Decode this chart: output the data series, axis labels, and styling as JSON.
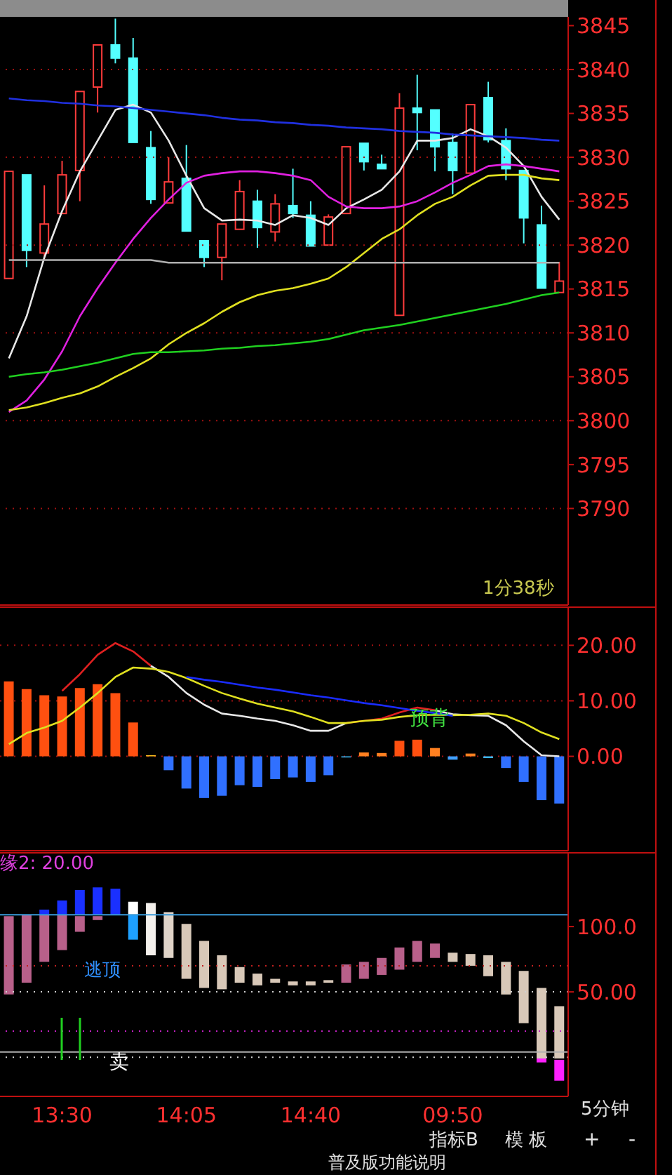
{
  "chart_data": [
    {
      "type": "candlestick",
      "categories": [
        null,
        null,
        null,
        null,
        null,
        null,
        null,
        null,
        null,
        null,
        null,
        null,
        null,
        null,
        null,
        null,
        null,
        null,
        null,
        null,
        null,
        null,
        null,
        null,
        null,
        null,
        null,
        null,
        null,
        null,
        null,
        null
      ],
      "ohlc": [
        [
          3816.2,
          3828.4,
          3816.2,
          3828.4
        ],
        [
          3828.0,
          3828.0,
          3817.5,
          3819.4
        ],
        [
          3819.1,
          3826.8,
          3818.3,
          3822.4
        ],
        [
          3823.6,
          3829.6,
          3823.6,
          3828.0
        ],
        [
          3828.5,
          3837.5,
          3825.0,
          3837.5
        ],
        [
          3838.0,
          3842.8,
          3835.1,
          3842.8
        ],
        [
          3842.8,
          3845.8,
          3840.7,
          3841.3
        ],
        [
          3841.3,
          3843.6,
          3831.7,
          3831.7
        ],
        [
          3831.1,
          3833.0,
          3824.7,
          3825.2
        ],
        [
          3824.8,
          3830.0,
          3824.8,
          3827.2
        ],
        [
          3827.6,
          3831.4,
          3821.6,
          3821.6
        ],
        [
          3820.5,
          3820.5,
          3817.5,
          3818.6
        ],
        [
          3818.6,
          3822.4,
          3816.0,
          3822.4
        ],
        [
          3821.8,
          3827.4,
          3821.8,
          3826.1
        ],
        [
          3825.0,
          3826.3,
          3819.7,
          3822.0
        ],
        [
          3821.5,
          3825.8,
          3820.4,
          3824.7
        ],
        [
          3824.5,
          3828.7,
          3823.1,
          3823.6
        ],
        [
          3823.4,
          3825.0,
          3819.9,
          3819.9
        ],
        [
          3820.0,
          3823.5,
          3820.0,
          3823.2
        ],
        [
          3823.6,
          3831.2,
          3823.6,
          3831.2
        ],
        [
          3831.6,
          3831.6,
          3828.5,
          3829.5
        ],
        [
          3829.2,
          3830.3,
          3828.7,
          3828.7
        ],
        [
          3812.0,
          3837.3,
          3812.0,
          3835.6
        ],
        [
          3835.6,
          3839.4,
          3830.8,
          3835.1
        ],
        [
          3835.4,
          3835.4,
          3828.4,
          3831.2
        ],
        [
          3831.7,
          3832.7,
          3825.8,
          3828.5
        ],
        [
          3828.2,
          3836.0,
          3828.2,
          3836.0
        ],
        [
          3836.8,
          3838.6,
          3831.7,
          3832.0
        ],
        [
          3831.9,
          3833.3,
          3827.4,
          3828.7
        ],
        [
          3828.5,
          3828.5,
          3820.2,
          3823.1
        ],
        [
          3822.3,
          3824.5,
          3815.1,
          3815.1
        ],
        [
          3814.6,
          3818.1,
          3814.6,
          3815.9
        ]
      ],
      "colors": [
        "#ff3c3c",
        "#54ffff",
        "#ff3c3c",
        "#ff3c3c",
        "#ff3c3c",
        "#ff3c3c",
        "#54ffff",
        "#54ffff",
        "#54ffff",
        "#ff3c3c",
        "#54ffff",
        "#54ffff",
        "#ff3c3c",
        "#ff3c3c",
        "#54ffff",
        "#ff3c3c",
        "#54ffff",
        "#54ffff",
        "#ff3c3c",
        "#ff3c3c",
        "#54ffff",
        "#54ffff",
        "#ff3c3c",
        "#54ffff",
        "#54ffff",
        "#54ffff",
        "#ff3c3c",
        "#54ffff",
        "#54ffff",
        "#54ffff",
        "#54ffff",
        "#ff3c3c"
      ],
      "series": [
        {
          "type": "line",
          "color": "#e8e8e8",
          "values": [
            3807.1,
            3811.9,
            3818.6,
            3823.9,
            3828.4,
            3831.9,
            3835.4,
            3836.0,
            3835.1,
            3831.9,
            3827.9,
            3824.2,
            3822.8,
            3822.9,
            3822.8,
            3822.3,
            3823.4,
            3823.1,
            3822.3,
            3824.2,
            3825.2,
            3826.3,
            3828.4,
            3831.9,
            3831.9,
            3832.2,
            3833.2,
            3832.4,
            3831.1,
            3829.0,
            3825.5,
            3822.9
          ]
        },
        {
          "type": "line",
          "color": "#e020e0",
          "values": [
            3801.0,
            3802.3,
            3804.7,
            3807.9,
            3811.9,
            3815.1,
            3818.0,
            3820.7,
            3823.1,
            3825.2,
            3827.1,
            3827.9,
            3828.2,
            3828.4,
            3828.4,
            3828.2,
            3827.9,
            3827.4,
            3825.5,
            3824.4,
            3824.2,
            3824.2,
            3824.4,
            3825.0,
            3826.0,
            3827.1,
            3828.0,
            3829.0,
            3829.2,
            3829.0,
            3828.7,
            3828.4
          ]
        },
        {
          "type": "line",
          "color": "#e0e020",
          "values": [
            3801.2,
            3801.5,
            3802.0,
            3802.6,
            3803.1,
            3803.9,
            3805.0,
            3806.0,
            3807.1,
            3808.7,
            3810.0,
            3811.1,
            3812.4,
            3813.5,
            3814.3,
            3814.8,
            3815.1,
            3815.6,
            3816.2,
            3817.5,
            3819.1,
            3820.7,
            3821.8,
            3823.4,
            3824.7,
            3825.5,
            3826.8,
            3827.9,
            3828.0,
            3828.0,
            3827.6,
            3827.4
          ]
        },
        {
          "type": "line",
          "color": "#20d020",
          "values": [
            3805.0,
            3805.3,
            3805.5,
            3805.8,
            3806.2,
            3806.6,
            3807.1,
            3807.6,
            3807.8,
            3807.8,
            3807.9,
            3808.0,
            3808.2,
            3808.3,
            3808.5,
            3808.6,
            3808.8,
            3809.0,
            3809.3,
            3809.8,
            3810.3,
            3810.6,
            3810.9,
            3811.3,
            3811.7,
            3812.1,
            3812.5,
            3812.9,
            3813.3,
            3813.8,
            3814.3,
            3814.6
          ]
        },
        {
          "type": "line",
          "color": "#2030e0",
          "values": [
            3836.7,
            3836.5,
            3836.4,
            3836.2,
            3836.1,
            3835.9,
            3835.8,
            3835.6,
            3835.4,
            3835.2,
            3835.0,
            3834.8,
            3834.5,
            3834.3,
            3834.2,
            3834.0,
            3833.9,
            3833.7,
            3833.6,
            3833.4,
            3833.3,
            3833.2,
            3833.0,
            3832.9,
            3832.8,
            3832.6,
            3832.5,
            3832.4,
            3832.3,
            3832.2,
            3832.0,
            3831.9
          ]
        },
        {
          "type": "line",
          "color": "#b0b0b0",
          "values": [
            3818.3,
            3818.3,
            3818.3,
            3818.3,
            3818.3,
            3818.3,
            3818.3,
            3818.3,
            3818.3,
            3818.0,
            3818.0,
            3818.0,
            3818.0,
            3818.0,
            3818.0,
            3818.0,
            3818.0,
            3818.0,
            3818.0,
            3818.0,
            3818.0,
            3818.0,
            3818.0,
            3818.0,
            3818.0,
            3818.0,
            3818.0,
            3818.0,
            3818.0,
            3818.0,
            3818.0,
            3818.0
          ]
        }
      ],
      "ylim": [
        3779,
        3846
      ],
      "yticks": [
        3790,
        3795,
        3800,
        3805,
        3810,
        3815,
        3820,
        3825,
        3830,
        3835,
        3840,
        3845
      ],
      "ref_lines": [
        {
          "axis": "y",
          "value": 3840,
          "color": "#a01010",
          "line_style": "dotted"
        },
        {
          "axis": "y",
          "value": 3830,
          "color": "#a01010",
          "line_style": "dotted"
        },
        {
          "axis": "y",
          "value": 3820,
          "color": "#a01010",
          "line_style": "dotted"
        },
        {
          "axis": "y",
          "value": 3810,
          "color": "#a01010",
          "line_style": "dotted"
        },
        {
          "axis": "y",
          "value": 3800,
          "color": "#a01010",
          "line_style": "dotted"
        },
        {
          "axis": "y",
          "value": 3790,
          "color": "#a01010",
          "line_style": "dotted"
        }
      ],
      "tick_labels": "y",
      "annotations": [
        "1分38秒"
      ]
    },
    {
      "type": "bar",
      "categories": [
        null,
        null,
        null,
        null,
        null,
        null,
        null,
        null,
        null,
        null,
        null,
        null,
        null,
        null,
        null,
        null,
        null,
        null,
        null,
        null,
        null,
        null,
        null,
        null,
        null,
        null,
        null,
        null,
        null,
        null,
        null,
        null
      ],
      "series": [
        {
          "type": "bar",
          "values": [
            13.5,
            12.1,
            11.0,
            10.8,
            12.3,
            13.0,
            11.4,
            6.1,
            0.2,
            -2.5,
            -5.8,
            -7.5,
            -7.1,
            -5.2,
            -5.5,
            -4.1,
            -3.8,
            -4.6,
            -3.4,
            -0.2,
            0.7,
            0.6,
            2.8,
            3.0,
            1.5,
            -0.6,
            0.5,
            -0.3,
            -2.1,
            -4.6,
            -7.9,
            -8.5
          ],
          "colors": [
            "#ff5010",
            "#ff5010",
            "#ff5010",
            "#ff5010",
            "#ff5010",
            "#ff5010",
            "#ff5010",
            "#ff5010",
            "#ffc020",
            "#3070ff",
            "#3070ff",
            "#3070ff",
            "#3070ff",
            "#3070ff",
            "#3070ff",
            "#3070ff",
            "#3070ff",
            "#3070ff",
            "#3070ff",
            "#40c0ff",
            "#ff8020",
            "#ff8020",
            "#ff5010",
            "#ff5010",
            "#ff8020",
            "#40a0ff",
            "#ff8020",
            "#40c0ff",
            "#3070ff",
            "#3070ff",
            "#3070ff",
            "#3070ff"
          ]
        },
        {
          "type": "line",
          "color": "#e02020",
          "values": [
            null,
            null,
            null,
            11.8,
            14.8,
            18.3,
            20.4,
            18.9,
            16.3,
            null,
            null,
            null,
            null,
            null,
            null,
            null,
            null,
            null,
            null,
            6.0,
            6.4,
            6.8,
            7.9,
            8.8,
            8.3,
            null,
            null,
            null,
            null,
            null,
            null,
            null
          ]
        },
        {
          "type": "line",
          "color": "#e8e8e8",
          "values": [
            null,
            null,
            null,
            null,
            null,
            null,
            null,
            null,
            16.3,
            14.3,
            11.4,
            9.3,
            7.7,
            7.3,
            6.8,
            6.4,
            5.6,
            4.6,
            4.6,
            6.0,
            null,
            null,
            null,
            null,
            8.3,
            7.6,
            7.4,
            7.3,
            5.6,
            2.7,
            0.2,
            0.0
          ]
        },
        {
          "type": "line",
          "color": "#e0e020",
          "values": [
            2.2,
            4.2,
            5.2,
            6.4,
            8.8,
            11.4,
            14.3,
            16.0,
            15.8,
            15.2,
            14.1,
            12.7,
            11.4,
            10.4,
            9.5,
            8.8,
            8.1,
            7.1,
            6.0,
            6.0,
            6.4,
            6.6,
            7.1,
            7.4,
            7.5,
            7.4,
            7.5,
            7.7,
            7.3,
            6.0,
            4.3,
            3.1
          ]
        },
        {
          "type": "line",
          "color": "#1a2cff",
          "values": [
            null,
            null,
            null,
            null,
            null,
            null,
            null,
            null,
            null,
            null,
            14.3,
            13.8,
            13.4,
            12.9,
            12.4,
            12.0,
            11.5,
            11.0,
            10.6,
            10.1,
            9.6,
            9.2,
            8.7,
            8.2,
            7.8,
            7.3,
            null,
            null,
            null,
            null,
            null,
            null
          ]
        }
      ],
      "ylim": [
        -17,
        27
      ],
      "yticks": [
        {
          "value": 0,
          "label": "0.00"
        },
        {
          "value": 10,
          "label": "10.00"
        },
        {
          "value": 20,
          "label": "20.00"
        }
      ],
      "grid": "y",
      "tick_labels": "y",
      "annotations": [
        "预背"
      ]
    },
    {
      "type": "bar",
      "categories": [
        null,
        null,
        null,
        "13:30",
        null,
        null,
        null,
        null,
        null,
        null,
        "14:05",
        null,
        null,
        null,
        null,
        null,
        null,
        "14:40",
        null,
        null,
        null,
        null,
        null,
        null,
        null,
        "09:50",
        null,
        null,
        null,
        null,
        null,
        null
      ],
      "series": [
        {
          "type": "bar",
          "base": [
            48,
            57,
            73,
            82,
            96,
            105,
            null,
            109,
            78,
            76,
            60,
            53,
            52,
            57,
            55,
            57,
            55,
            55,
            57,
            57,
            60,
            63,
            67,
            73,
            76,
            73,
            70,
            62,
            48,
            26,
            -1,
            -1
          ],
          "values": [
            60,
            52,
            36,
            27,
            12,
            3,
            null,
            10,
            40,
            35,
            42,
            36,
            26,
            12,
            9,
            3,
            3,
            3,
            2,
            14,
            13,
            13,
            17,
            16,
            11,
            7,
            9,
            16,
            25,
            40,
            54,
            40
          ],
          "colors": [
            "#b8608a",
            "#b8608a",
            "#b8608a",
            "#b8608a",
            "#b8608a",
            "#b8608a",
            "#b8608a",
            "#ffffff",
            "#f4f0ec",
            "#e0d4c8",
            "#d8c8b8",
            "#d8c8b8",
            "#d8c8b8",
            "#d8c8b8",
            "#d8c8b8",
            "#d8c8b8",
            "#d8c8b8",
            "#d8c8b8",
            "#d8c8b8",
            "#b8608a",
            "#b8608a",
            "#b8608a",
            "#b8608a",
            "#b8608a",
            "#b8608a",
            "#d8c8b8",
            "#d8c8b8",
            "#d8c8b8",
            "#d8c8b8",
            "#d8c8b8",
            "#d8c8b8",
            "#d8c8b8"
          ]
        },
        {
          "type": "bar",
          "color": "#1a30ff",
          "base": [
            null,
            null,
            109,
            109,
            109,
            109,
            109,
            null,
            null,
            null,
            null,
            null,
            null,
            null,
            null,
            null,
            null,
            null,
            null,
            null,
            null,
            null,
            null,
            null,
            null,
            null,
            null,
            null,
            null,
            null,
            null,
            null
          ],
          "values": [
            null,
            null,
            4,
            11,
            19,
            21,
            20,
            null,
            null,
            null,
            null,
            null,
            null,
            null,
            null,
            null,
            null,
            null,
            null,
            null,
            null,
            null,
            null,
            null,
            null,
            null,
            null,
            null,
            null,
            null,
            null,
            null
          ]
        },
        {
          "type": "bar",
          "color": "#1ea0ff",
          "base": [
            null,
            null,
            null,
            null,
            null,
            null,
            null,
            90,
            null,
            null,
            null,
            null,
            null,
            null,
            null,
            null,
            null,
            null,
            null,
            null,
            null,
            null,
            null,
            null,
            null,
            null,
            null,
            null,
            null,
            null,
            null,
            null
          ],
          "values": [
            null,
            null,
            null,
            null,
            null,
            null,
            null,
            19,
            null,
            null,
            null,
            null,
            null,
            null,
            null,
            null,
            null,
            null,
            null,
            null,
            null,
            null,
            null,
            null,
            null,
            null,
            null,
            null,
            null,
            null,
            null,
            null
          ]
        },
        {
          "type": "bar",
          "color": "#ff20ff",
          "base": [
            null,
            null,
            null,
            null,
            null,
            null,
            null,
            null,
            null,
            null,
            null,
            null,
            null,
            null,
            null,
            null,
            null,
            null,
            null,
            null,
            null,
            null,
            null,
            null,
            null,
            null,
            null,
            null,
            null,
            null,
            -4,
            -18
          ],
          "values": [
            null,
            null,
            null,
            null,
            null,
            null,
            null,
            null,
            null,
            null,
            null,
            null,
            null,
            null,
            null,
            null,
            null,
            null,
            null,
            null,
            null,
            null,
            null,
            null,
            null,
            null,
            null,
            null,
            null,
            null,
            3,
            16
          ]
        }
      ],
      "ylim": [
        -30,
        157
      ],
      "yticks": [
        {
          "value": 50,
          "label": "50.00"
        },
        {
          "value": 100,
          "label": "100.0"
        }
      ],
      "ref_lines": [
        {
          "axis": "y",
          "value": 109,
          "color": "#3a9ad9",
          "line_style": "solid"
        },
        {
          "axis": "y",
          "value": 70,
          "color": "#c02020",
          "line_style": "dotted"
        },
        {
          "axis": "y",
          "value": 50,
          "color": "#d0d0d0",
          "line_style": "dotted"
        },
        {
          "axis": "y",
          "value": 20,
          "color": "#c020c0",
          "line_style": "dotted"
        },
        {
          "axis": "y",
          "value": 4,
          "color": "#b0b0b0",
          "line_style": "solid"
        },
        {
          "axis": "y",
          "value": 0,
          "color": "#d0d0d0",
          "line_style": "dotted"
        }
      ],
      "annotations": [
        "缘2: 20.00",
        "逃顶",
        "卖",
        "5分钟",
        "指标B",
        "模 板",
        "+",
        "-",
        "普及版功能说明"
      ]
    }
  ]
}
